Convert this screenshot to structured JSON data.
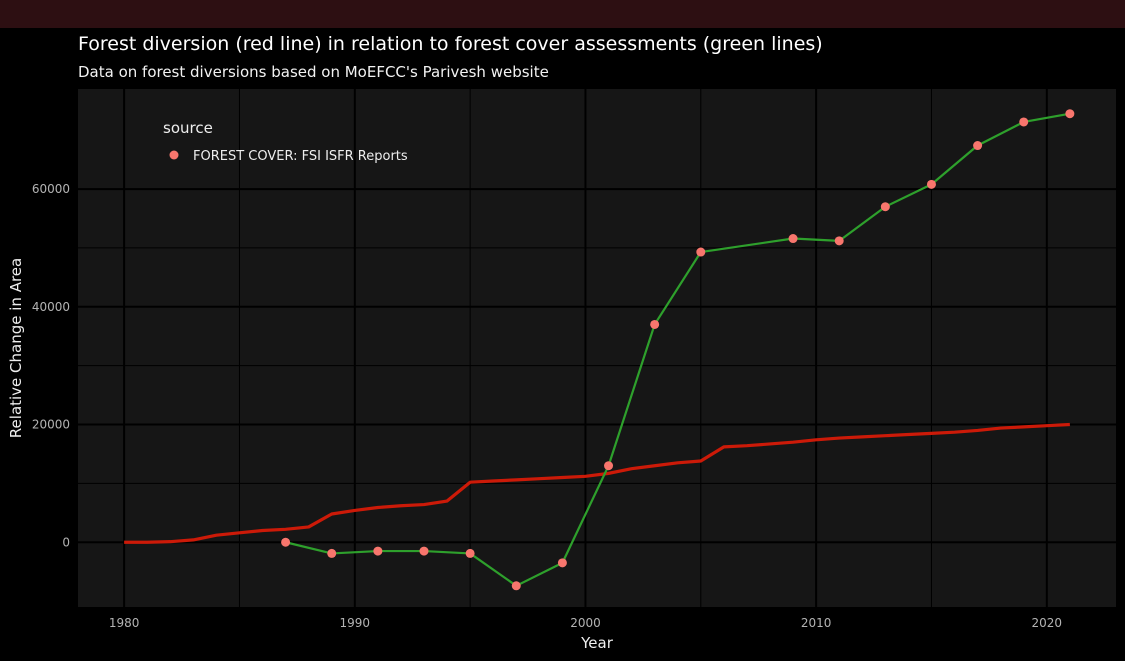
{
  "title": "Forest diversion (red line) in relation to forest cover assessments (green lines)",
  "subtitle": "Data on forest diversions based on MoEFCC's Parivesh website",
  "chart_data": {
    "type": "line",
    "xlabel": "Year",
    "ylabel": "Relative Change in Area",
    "xlim": [
      1978,
      2023
    ],
    "ylim": [
      -11000,
      77000
    ],
    "x_ticks": [
      1980,
      1990,
      2000,
      2010,
      2020
    ],
    "y_ticks": [
      0,
      20000,
      40000,
      60000
    ],
    "y_tick_labels": [
      "0",
      "20000",
      "40000",
      "60000"
    ],
    "grid": true,
    "legend": {
      "title": "source",
      "position": "top-left",
      "entries": [
        "FOREST COVER: FSI ISFR Reports"
      ]
    },
    "colors": {
      "diversion": "#cc1a08",
      "forest_cover_line": "#2ea02c",
      "forest_cover_point": "#f8766d",
      "panel": "#161616",
      "grid": "#000000"
    },
    "series": [
      {
        "name": "",
        "style": "line",
        "x": [
          1980,
          1981,
          1982,
          1983,
          1984,
          1985,
          1986,
          1987,
          1988,
          1989,
          1990,
          1991,
          1992,
          1993,
          1994,
          1995,
          1996,
          1997,
          1998,
          1999,
          2000,
          2001,
          2002,
          2003,
          2004,
          2005,
          2006,
          2007,
          2008,
          2009,
          2010,
          2011,
          2012,
          2013,
          2014,
          2015,
          2016,
          2017,
          2018,
          2019,
          2020,
          2021
        ],
        "y": [
          0,
          0,
          100,
          400,
          1200,
          1600,
          2000,
          2200,
          2600,
          4800,
          5400,
          5900,
          6200,
          6400,
          7000,
          10200,
          10400,
          10600,
          10800,
          11000,
          11200,
          11700,
          12500,
          13000,
          13500,
          13800,
          16200,
          16400,
          16700,
          17000,
          17400,
          17700,
          17900,
          18100,
          18300,
          18500,
          18700,
          19000,
          19400,
          19600,
          19800,
          20000
        ]
      },
      {
        "name": "FOREST COVER: FSI ISFR Reports",
        "style": "line+points",
        "x": [
          1987,
          1989,
          1991,
          1993,
          1995,
          1997,
          1999,
          2001,
          2003,
          2005,
          2009,
          2011,
          2013,
          2015,
          2017,
          2019,
          2021
        ],
        "y": [
          0,
          -1900,
          -1500,
          -1500,
          -1900,
          -7400,
          -3500,
          13000,
          37000,
          49300,
          51600,
          51200,
          57000,
          60800,
          67400,
          71400,
          72800
        ]
      }
    ]
  }
}
